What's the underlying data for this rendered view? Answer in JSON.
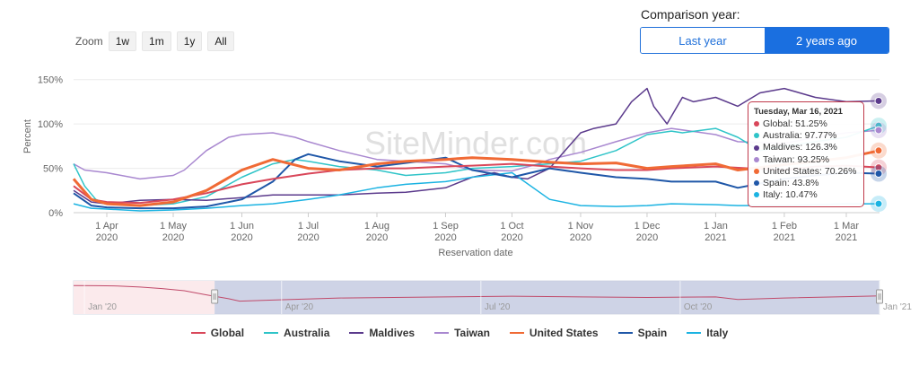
{
  "zoom": {
    "label": "Zoom",
    "buttons": [
      "1w",
      "1m",
      "1y",
      "All"
    ]
  },
  "comparison": {
    "label": "Comparison year:",
    "options": [
      "Last year",
      "2 years ago"
    ],
    "selected": "2 years ago"
  },
  "watermark": "SiteMinder.com",
  "tooltip": {
    "date": "Tuesday, Mar 16, 2021",
    "rows": [
      {
        "text": "Global: 51.25%",
        "color": "#d9475a"
      },
      {
        "text": "Australia: 97.77%",
        "color": "#2fc4c8"
      },
      {
        "text": "Maldives: 126.3%",
        "color": "#5b3a8c"
      },
      {
        "text": "Taiwan: 93.25%",
        "color": "#a988d0"
      },
      {
        "text": "United States: 70.26%",
        "color": "#f06a35"
      },
      {
        "text": "Spain: 43.8%",
        "color": "#1f57a8"
      },
      {
        "text": "Italy: 10.47%",
        "color": "#1bb3e2"
      }
    ]
  },
  "chart_data": {
    "type": "line",
    "xlabel": "Reservation date",
    "ylabel": "Percent",
    "yticks": [
      "0%",
      "50%",
      "100%",
      "150%"
    ],
    "ylim": [
      0,
      175
    ],
    "x_ticks": [
      {
        "l1": "1 Apr",
        "l2": "2020",
        "d": 15
      },
      {
        "l1": "1 May",
        "l2": "2020",
        "d": 45
      },
      {
        "l1": "1 Jun",
        "l2": "2020",
        "d": 76
      },
      {
        "l1": "1 Jul",
        "l2": "2020",
        "d": 106
      },
      {
        "l1": "1 Aug",
        "l2": "2020",
        "d": 137
      },
      {
        "l1": "1 Sep",
        "l2": "2020",
        "d": 168
      },
      {
        "l1": "1 Oct",
        "l2": "2020",
        "d": 198
      },
      {
        "l1": "1 Nov",
        "l2": "2020",
        "d": 229
      },
      {
        "l1": "1 Dec",
        "l2": "2020",
        "d": 259
      },
      {
        "l1": "1 Jan",
        "l2": "2021",
        "d": 290
      },
      {
        "l1": "1 Feb",
        "l2": "2021",
        "d": 321
      },
      {
        "l1": "1 Mar",
        "l2": "2021",
        "d": 349
      }
    ],
    "x_range": [
      0,
      364
    ],
    "legend_position": "bottom",
    "series": [
      {
        "name": "Global",
        "color": "#d9475a",
        "width": 2,
        "d": [
          0,
          8,
          15,
          30,
          45,
          60,
          76,
          90,
          106,
          120,
          137,
          150,
          168,
          180,
          198,
          215,
          229,
          245,
          259,
          270,
          290,
          305,
          321,
          335,
          349,
          364
        ],
        "v": [
          30,
          15,
          12,
          11,
          15,
          22,
          32,
          38,
          44,
          48,
          50,
          50,
          52,
          53,
          55,
          52,
          50,
          48,
          48,
          50,
          52,
          50,
          48,
          52,
          53,
          51
        ]
      },
      {
        "name": "Australia",
        "color": "#2fc4c8",
        "width": 1.5,
        "d": [
          0,
          5,
          10,
          15,
          30,
          45,
          60,
          76,
          90,
          100,
          106,
          120,
          137,
          150,
          168,
          180,
          198,
          215,
          229,
          245,
          259,
          270,
          275,
          290,
          300,
          310,
          321,
          335,
          349,
          364
        ],
        "v": [
          55,
          30,
          15,
          10,
          8,
          10,
          18,
          40,
          55,
          60,
          58,
          52,
          48,
          42,
          45,
          50,
          52,
          55,
          58,
          70,
          88,
          92,
          90,
          95,
          85,
          70,
          75,
          80,
          85,
          98
        ]
      },
      {
        "name": "Maldives",
        "color": "#5b3a8c",
        "width": 1.5,
        "d": [
          0,
          8,
          15,
          30,
          45,
          60,
          76,
          90,
          106,
          120,
          137,
          150,
          168,
          180,
          190,
          198,
          205,
          215,
          222,
          229,
          235,
          245,
          252,
          259,
          262,
          268,
          275,
          280,
          290,
          300,
          310,
          321,
          335,
          349,
          364
        ],
        "v": [
          25,
          12,
          10,
          14,
          15,
          14,
          17,
          20,
          20,
          20,
          22,
          23,
          28,
          40,
          45,
          40,
          38,
          50,
          70,
          90,
          95,
          100,
          125,
          140,
          120,
          100,
          130,
          125,
          130,
          120,
          135,
          140,
          130,
          125,
          126
        ]
      },
      {
        "name": "Taiwan",
        "color": "#a988d0",
        "width": 1.5,
        "d": [
          0,
          5,
          15,
          30,
          45,
          50,
          60,
          70,
          76,
          90,
          100,
          106,
          120,
          137,
          150,
          168,
          180,
          198,
          210,
          215,
          229,
          245,
          259,
          270,
          290,
          300,
          321,
          335,
          349,
          364
        ],
        "v": [
          55,
          48,
          45,
          38,
          42,
          48,
          70,
          85,
          88,
          90,
          85,
          80,
          70,
          60,
          58,
          55,
          48,
          47,
          55,
          60,
          68,
          80,
          90,
          95,
          88,
          80,
          78,
          85,
          90,
          93
        ]
      },
      {
        "name": "United States",
        "color": "#f06a35",
        "width": 3,
        "d": [
          0,
          8,
          15,
          30,
          45,
          60,
          76,
          90,
          106,
          120,
          137,
          150,
          168,
          180,
          198,
          215,
          229,
          245,
          259,
          270,
          290,
          300,
          321,
          335,
          349,
          364
        ],
        "v": [
          38,
          15,
          10,
          8,
          12,
          25,
          48,
          60,
          50,
          48,
          55,
          58,
          60,
          62,
          60,
          57,
          55,
          56,
          50,
          52,
          55,
          48,
          54,
          58,
          62,
          70
        ]
      },
      {
        "name": "Spain",
        "color": "#1f57a8",
        "width": 2,
        "d": [
          0,
          8,
          15,
          30,
          45,
          60,
          76,
          90,
          100,
          106,
          120,
          137,
          150,
          168,
          180,
          198,
          215,
          229,
          245,
          259,
          270,
          290,
          300,
          321,
          335,
          349,
          364
        ],
        "v": [
          22,
          8,
          6,
          5,
          5,
          7,
          15,
          35,
          60,
          66,
          58,
          52,
          56,
          62,
          48,
          40,
          50,
          45,
          40,
          38,
          35,
          35,
          28,
          38,
          42,
          45,
          44
        ]
      },
      {
        "name": "Italy",
        "color": "#1bb3e2",
        "width": 1.5,
        "d": [
          0,
          8,
          15,
          30,
          45,
          60,
          76,
          90,
          106,
          120,
          137,
          150,
          168,
          180,
          198,
          215,
          229,
          245,
          259,
          270,
          290,
          300,
          321,
          335,
          349,
          364
        ],
        "v": [
          10,
          5,
          4,
          2,
          3,
          5,
          8,
          10,
          15,
          20,
          28,
          32,
          35,
          40,
          45,
          15,
          8,
          7,
          8,
          10,
          9,
          8,
          8,
          9,
          10,
          10
        ]
      }
    ]
  },
  "navigator": {
    "labels": [
      "Jan '20",
      "Apr '20",
      "Jul '20",
      "Oct '20",
      "Jan '21"
    ],
    "selection": [
      0.175,
      1.0
    ]
  },
  "legend_labels": [
    "Global",
    "Australia",
    "Maldives",
    "Taiwan",
    "United States",
    "Spain",
    "Italy"
  ]
}
